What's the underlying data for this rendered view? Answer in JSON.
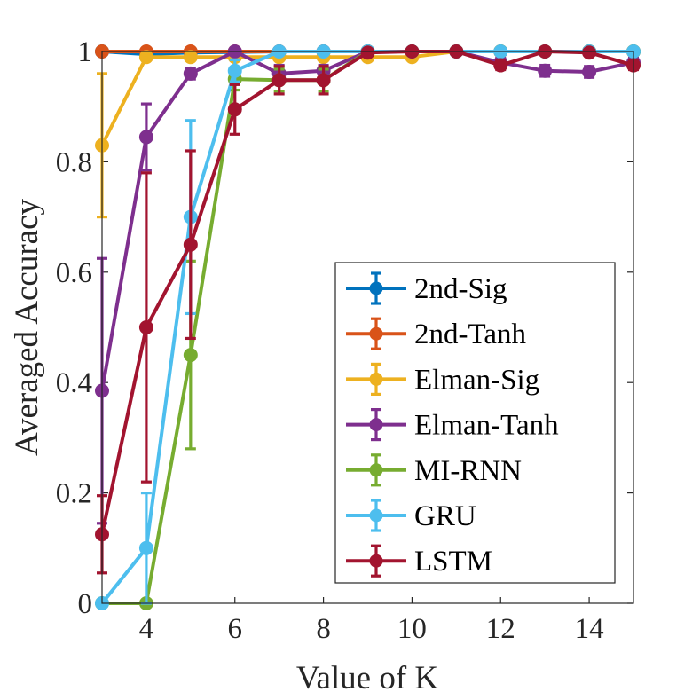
{
  "chart_data": {
    "type": "line",
    "title": "",
    "xlabel": "Value of K",
    "ylabel": "Averaged Accuracy",
    "xlim": [
      3,
      15
    ],
    "ylim": [
      0,
      1
    ],
    "xticks": [
      4,
      6,
      8,
      10,
      12,
      14
    ],
    "yticks": [
      0,
      0.2,
      0.4,
      0.6,
      0.8,
      1
    ],
    "ytick_labels": [
      "0",
      "0.2",
      "0.4",
      "0.6",
      "0.8",
      "1"
    ],
    "legend_position": "bottom-right",
    "series": [
      {
        "name": "2nd-Sig",
        "color": "#0072BD",
        "x": [
          3,
          4,
          5,
          6,
          7,
          8,
          9,
          10,
          11,
          12,
          13,
          14,
          15
        ],
        "values": [
          1.0,
          0.995,
          0.998,
          0.999,
          1.0,
          1.0,
          1.0,
          1.0,
          1.0,
          1.0,
          1.0,
          1.0,
          1.0
        ],
        "errors": [
          0,
          0.004,
          0.003,
          0.002,
          0,
          0,
          0,
          0,
          0,
          0,
          0,
          0,
          0
        ]
      },
      {
        "name": "2nd-Tanh",
        "color": "#D95319",
        "x": [
          3,
          4,
          5,
          6,
          7,
          8,
          9,
          10,
          11,
          12,
          13,
          14,
          15
        ],
        "values": [
          1.0,
          1.0,
          1.0,
          1.0,
          1.0,
          1.0,
          1.0,
          1.0,
          1.0,
          1.0,
          1.0,
          1.0,
          1.0
        ],
        "errors": [
          0,
          0,
          0,
          0,
          0,
          0,
          0,
          0,
          0,
          0,
          0,
          0,
          0
        ]
      },
      {
        "name": "Elman-Sig",
        "color": "#EDB120",
        "x": [
          3,
          4,
          5,
          6,
          7,
          8,
          9,
          10,
          11,
          12,
          13,
          14,
          15
        ],
        "values": [
          0.83,
          0.99,
          0.99,
          0.99,
          0.99,
          0.99,
          0.99,
          0.99,
          1.0,
          1.0,
          1.0,
          1.0,
          1.0
        ],
        "errors": [
          0.13,
          0.005,
          0.005,
          0.004,
          0.004,
          0.004,
          0.004,
          0.004,
          0,
          0,
          0,
          0,
          0
        ]
      },
      {
        "name": "Elman-Tanh",
        "color": "#7E2F8E",
        "x": [
          3,
          4,
          5,
          6,
          7,
          8,
          9,
          10,
          11,
          12,
          13,
          14,
          15
        ],
        "values": [
          0.385,
          0.845,
          0.96,
          1.0,
          0.96,
          0.965,
          1.0,
          1.0,
          1.0,
          0.98,
          0.965,
          0.963,
          0.98
        ],
        "errors": [
          0.24,
          0.06,
          0.01,
          0.005,
          0.015,
          0.01,
          0.003,
          0.003,
          0.003,
          0.008,
          0.01,
          0.01,
          0.008
        ]
      },
      {
        "name": "MI-RNN",
        "color": "#77AC30",
        "x": [
          3,
          4,
          5,
          6,
          7,
          8,
          9,
          10,
          11,
          12,
          13,
          14,
          15
        ],
        "values": [
          0.0,
          0.0,
          0.45,
          0.95,
          0.948,
          0.948,
          1.0,
          1.0,
          1.0,
          1.0,
          1.0,
          1.0,
          1.0
        ],
        "errors": [
          0,
          0,
          0.17,
          0.02,
          0.02,
          0.02,
          0,
          0,
          0,
          0,
          0,
          0,
          0
        ]
      },
      {
        "name": "GRU",
        "color": "#4DBEEE",
        "x": [
          3,
          4,
          5,
          6,
          7,
          8,
          9,
          10,
          11,
          12,
          13,
          14,
          15
        ],
        "values": [
          0.0,
          0.1,
          0.7,
          0.965,
          1.0,
          1.0,
          1.0,
          1.0,
          1.0,
          1.0,
          1.0,
          1.0,
          1.0
        ],
        "errors": [
          0,
          0.1,
          0.175,
          0.02,
          0,
          0,
          0,
          0,
          0,
          0,
          0,
          0,
          0
        ]
      },
      {
        "name": "LSTM",
        "color": "#A2142F",
        "x": [
          3,
          4,
          5,
          6,
          7,
          8,
          9,
          10,
          11,
          12,
          13,
          14,
          15
        ],
        "values": [
          0.125,
          0.5,
          0.65,
          0.895,
          0.948,
          0.948,
          0.998,
          1.0,
          1.0,
          0.975,
          1.0,
          0.998,
          0.975
        ],
        "errors": [
          0.07,
          0.28,
          0.17,
          0.045,
          0.025,
          0.025,
          0.003,
          0.002,
          0.002,
          0.008,
          0.002,
          0.003,
          0.008
        ]
      }
    ]
  }
}
